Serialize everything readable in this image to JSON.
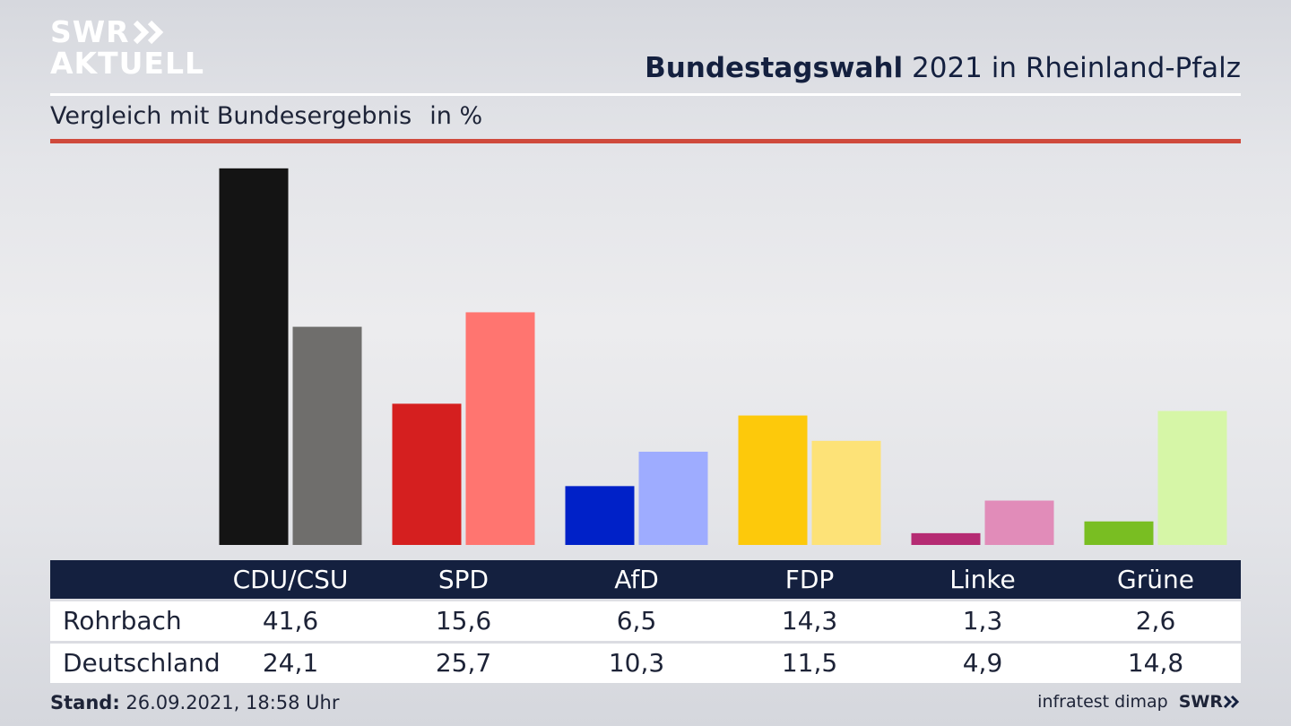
{
  "branding": {
    "logo_line1": "SWR",
    "logo_line2": "AKTUELL",
    "source": "infratest dimap",
    "footer_brand": "SWR"
  },
  "header": {
    "title_bold": "Bundestagswahl",
    "title_rest": " 2021 in Rheinland-Pfalz",
    "subtitle": "Vergleich mit Bundesergebnis",
    "unit": "in %"
  },
  "footer": {
    "stand_label": "Stand:",
    "stand_value": " 26.09.2021, 18:58 Uhr"
  },
  "colors": {
    "navy": "#14203f",
    "accent_red": "#cf4a3c"
  },
  "chart_data": {
    "type": "bar",
    "categories": [
      "CDU/CSU",
      "SPD",
      "AfD",
      "FDP",
      "Linke",
      "Grüne"
    ],
    "series": [
      {
        "name": "Rohrbach",
        "values": [
          41.6,
          15.6,
          6.5,
          14.3,
          1.3,
          2.6
        ],
        "labels": [
          "41,6",
          "15,6",
          "6,5",
          "14,3",
          "1,3",
          "2,6"
        ],
        "colors": [
          "#141414",
          "#d51f1f",
          "#0021c8",
          "#fdc90b",
          "#b52b73",
          "#79be22"
        ]
      },
      {
        "name": "Deutschland",
        "values": [
          24.1,
          25.7,
          10.3,
          11.5,
          4.9,
          14.8
        ],
        "labels": [
          "24,1",
          "25,7",
          "10,3",
          "11,5",
          "4,9",
          "14,8"
        ],
        "colors": [
          "#6f6e6c",
          "#ff7570",
          "#9eacff",
          "#fde277",
          "#e18cb9",
          "#d6f6a7"
        ]
      }
    ],
    "ylim": [
      0,
      42
    ],
    "grid": false,
    "legend": "table-below"
  }
}
